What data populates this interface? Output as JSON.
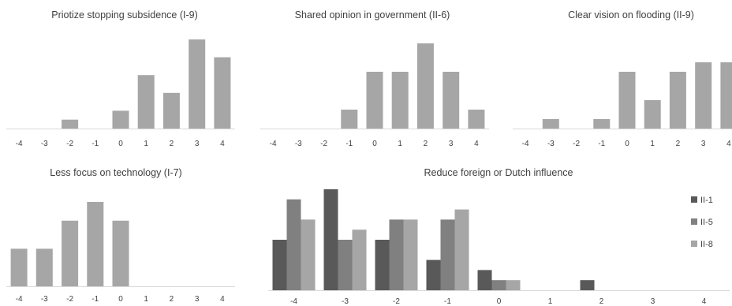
{
  "chart_data": [
    {
      "type": "bar",
      "title": "Priotize stopping subsidence (I-9)",
      "categories": [
        "-4",
        "-3",
        "-2",
        "-1",
        "0",
        "1",
        "2",
        "3",
        "4"
      ],
      "values": [
        0,
        0,
        1,
        0,
        2,
        6,
        4,
        10,
        8
      ],
      "ylim": [
        0,
        10
      ],
      "grid": false,
      "color": "#a6a6a6"
    },
    {
      "type": "bar",
      "title": "Shared opinion in government (II-6)",
      "categories": [
        "-4",
        "-3",
        "-2",
        "-1",
        "0",
        "1",
        "2",
        "3",
        "4"
      ],
      "values": [
        0,
        0,
        0,
        2,
        6,
        6,
        9,
        6,
        2
      ],
      "ylim": [
        0,
        9
      ],
      "grid": false,
      "color": "#a6a6a6"
    },
    {
      "type": "bar",
      "title": "Clear vision on flooding (II-9)",
      "categories": [
        "-4",
        "-3",
        "-2",
        "-1",
        "0",
        "1",
        "2",
        "3",
        "4"
      ],
      "values": [
        0,
        1,
        0,
        1,
        6,
        3,
        6,
        7,
        7
      ],
      "ylim": [
        0,
        7
      ],
      "grid": false,
      "color": "#a6a6a6"
    },
    {
      "type": "bar",
      "title": "Less focus on technology (I-7)",
      "categories": [
        "-4",
        "-3",
        "-2",
        "-1",
        "0",
        "1",
        "2",
        "3",
        "4"
      ],
      "values": [
        4,
        4,
        7,
        9,
        7,
        0,
        0,
        0,
        0
      ],
      "ylim": [
        0,
        9
      ],
      "grid": false,
      "color": "#a6a6a6"
    },
    {
      "type": "bar",
      "title": "Reduce foreign or Dutch influence",
      "categories": [
        "-4",
        "-3",
        "-2",
        "-1",
        "0",
        "1",
        "2",
        "3",
        "4"
      ],
      "series": [
        {
          "name": "II-1",
          "values": [
            5,
            10,
            5,
            3,
            2,
            0,
            1,
            0,
            0
          ],
          "color": "#595959"
        },
        {
          "name": "II-5",
          "values": [
            9,
            5,
            7,
            7,
            1,
            0,
            0,
            0,
            0
          ],
          "color": "#808080"
        },
        {
          "name": "II-8",
          "values": [
            7,
            6,
            7,
            8,
            1,
            0,
            0,
            0,
            0
          ],
          "color": "#a6a6a6"
        }
      ],
      "ylim": [
        0,
        10
      ],
      "grid": false,
      "legend": "right"
    }
  ]
}
